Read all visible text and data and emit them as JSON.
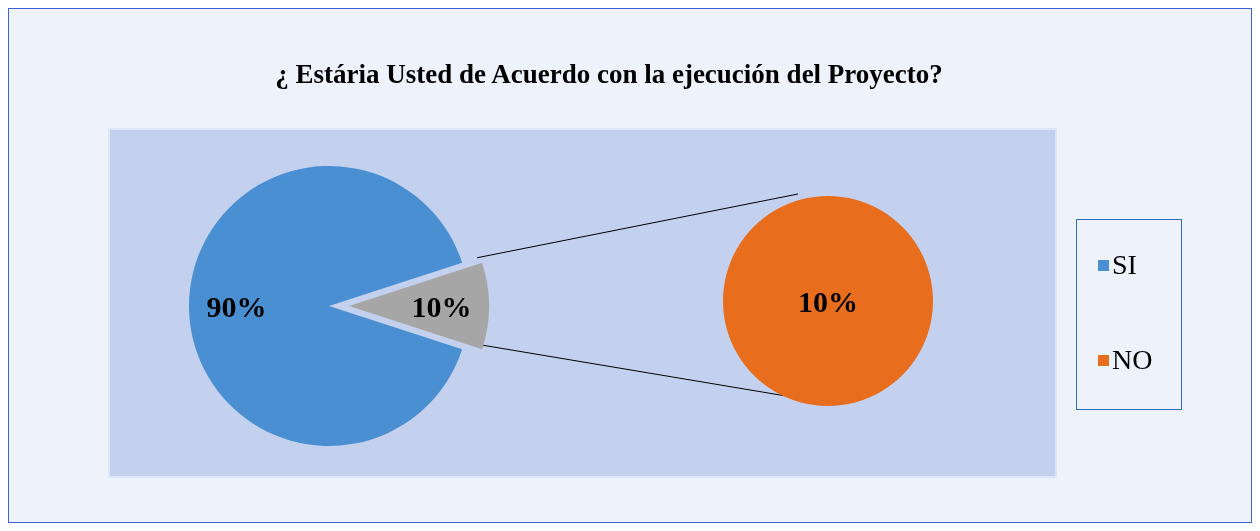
{
  "chart_data": [
    {
      "type": "pie",
      "title": "¿ Estária Usted de Acuerdo con la ejecución del Proyecto?",
      "categories": [
        "SI",
        null
      ],
      "values": [
        90,
        10
      ],
      "colors": [
        "#4a8fd2",
        "#a6a6a6"
      ],
      "value_labels": [
        "90%",
        "10%"
      ],
      "legend": "right"
    },
    {
      "type": "pie",
      "categories": [
        "NO"
      ],
      "values": [
        10
      ],
      "colors": [
        "#e86d1c"
      ],
      "value_labels": [
        "10%"
      ],
      "legend": "right"
    }
  ]
}
